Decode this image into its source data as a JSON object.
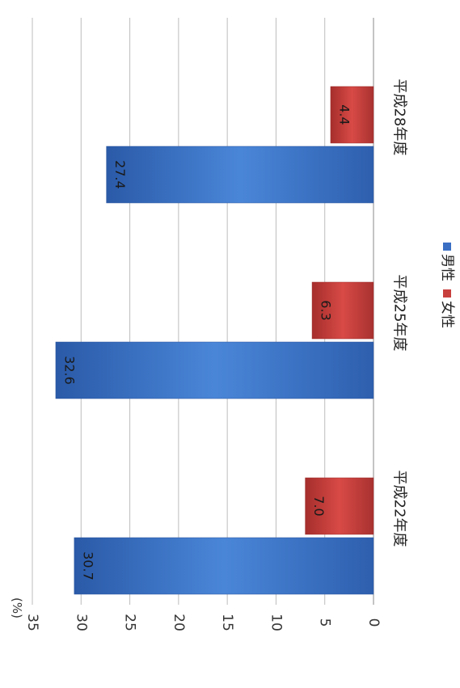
{
  "chart_data": {
    "type": "bar",
    "orientation": "rotated-90-cw",
    "unit_label": "(%)",
    "categories": [
      "平成22年度",
      "平成25年度",
      "平成28年度"
    ],
    "series": [
      {
        "name": "男性",
        "values": [
          30.7,
          32.6,
          27.4
        ],
        "labels": [
          "30.7",
          "32.6",
          "27.4"
        ],
        "color": "#3a6fc4"
      },
      {
        "name": "女性",
        "values": [
          7.0,
          6.3,
          4.4
        ],
        "labels": [
          "7.0",
          "6.3",
          "4.4"
        ],
        "color": "#c8403e"
      }
    ],
    "ylim": [
      0,
      35
    ],
    "ticks": [
      "0",
      "5",
      "10",
      "15",
      "20",
      "25",
      "30",
      "35"
    ],
    "grid": true,
    "legend_position": "right"
  }
}
